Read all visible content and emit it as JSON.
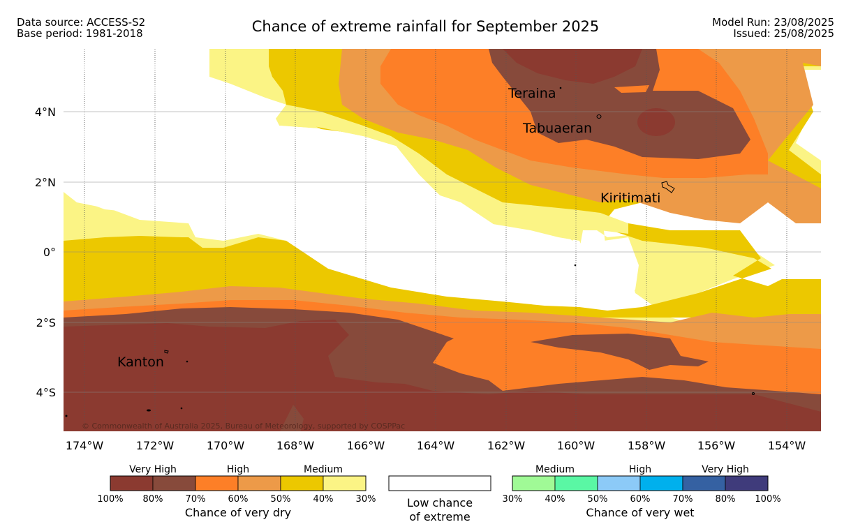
{
  "header": {
    "source": "Data source: ACCESS-S2",
    "base_period": "Base period: 1981-2018",
    "title": "Chance of extreme rainfall for September 2025",
    "model_run": "Model Run: 23/08/2025",
    "issued": "Issued: 25/08/2025"
  },
  "map": {
    "lon_ticks": [
      "174°W",
      "172°W",
      "170°W",
      "168°W",
      "166°W",
      "164°W",
      "162°W",
      "160°W",
      "158°W",
      "156°W",
      "154°W"
    ],
    "lat_ticks": [
      "4°N",
      "2°N",
      "0°",
      "2°S",
      "4°S"
    ],
    "places": {
      "teraina": "Teraina",
      "tabuaeran": "Tabuaeran",
      "kiritimati": "Kiritimati",
      "kanton": "Kanton"
    },
    "copyright": "© Commonwealth of Australia 2025, Bureau of Meteorology, supported by COSPPac",
    "colors": {
      "dry_80_100": "#8b3a30",
      "dry_70_80": "#874a3b",
      "dry_60_70": "#fd7f27",
      "dry_50_60": "#ed9a48",
      "dry_40_50": "#ecc800",
      "dry_30_40": "#fbf485"
    }
  },
  "legend": {
    "dry": {
      "levels": [
        "Very High",
        "High",
        "Medium"
      ],
      "ticks": [
        "100%",
        "80%",
        "70%",
        "60%",
        "50%",
        "40%",
        "30%"
      ],
      "title": "Chance of very dry",
      "colors": [
        "#8b3a30",
        "#874a3b",
        "#fd7f27",
        "#ed9a48",
        "#ecc800",
        "#fbf485"
      ]
    },
    "low": {
      "line1": "Low chance",
      "line2": "of extreme"
    },
    "wet": {
      "levels": [
        "Medium",
        "High",
        "Very High"
      ],
      "ticks": [
        "30%",
        "40%",
        "50%",
        "60%",
        "70%",
        "80%",
        "100%"
      ],
      "title": "Chance of very wet",
      "colors": [
        "#a0fa96",
        "#5af7a4",
        "#8ccaf7",
        "#00b0ed",
        "#3561a2",
        "#3f3b7b"
      ]
    }
  }
}
